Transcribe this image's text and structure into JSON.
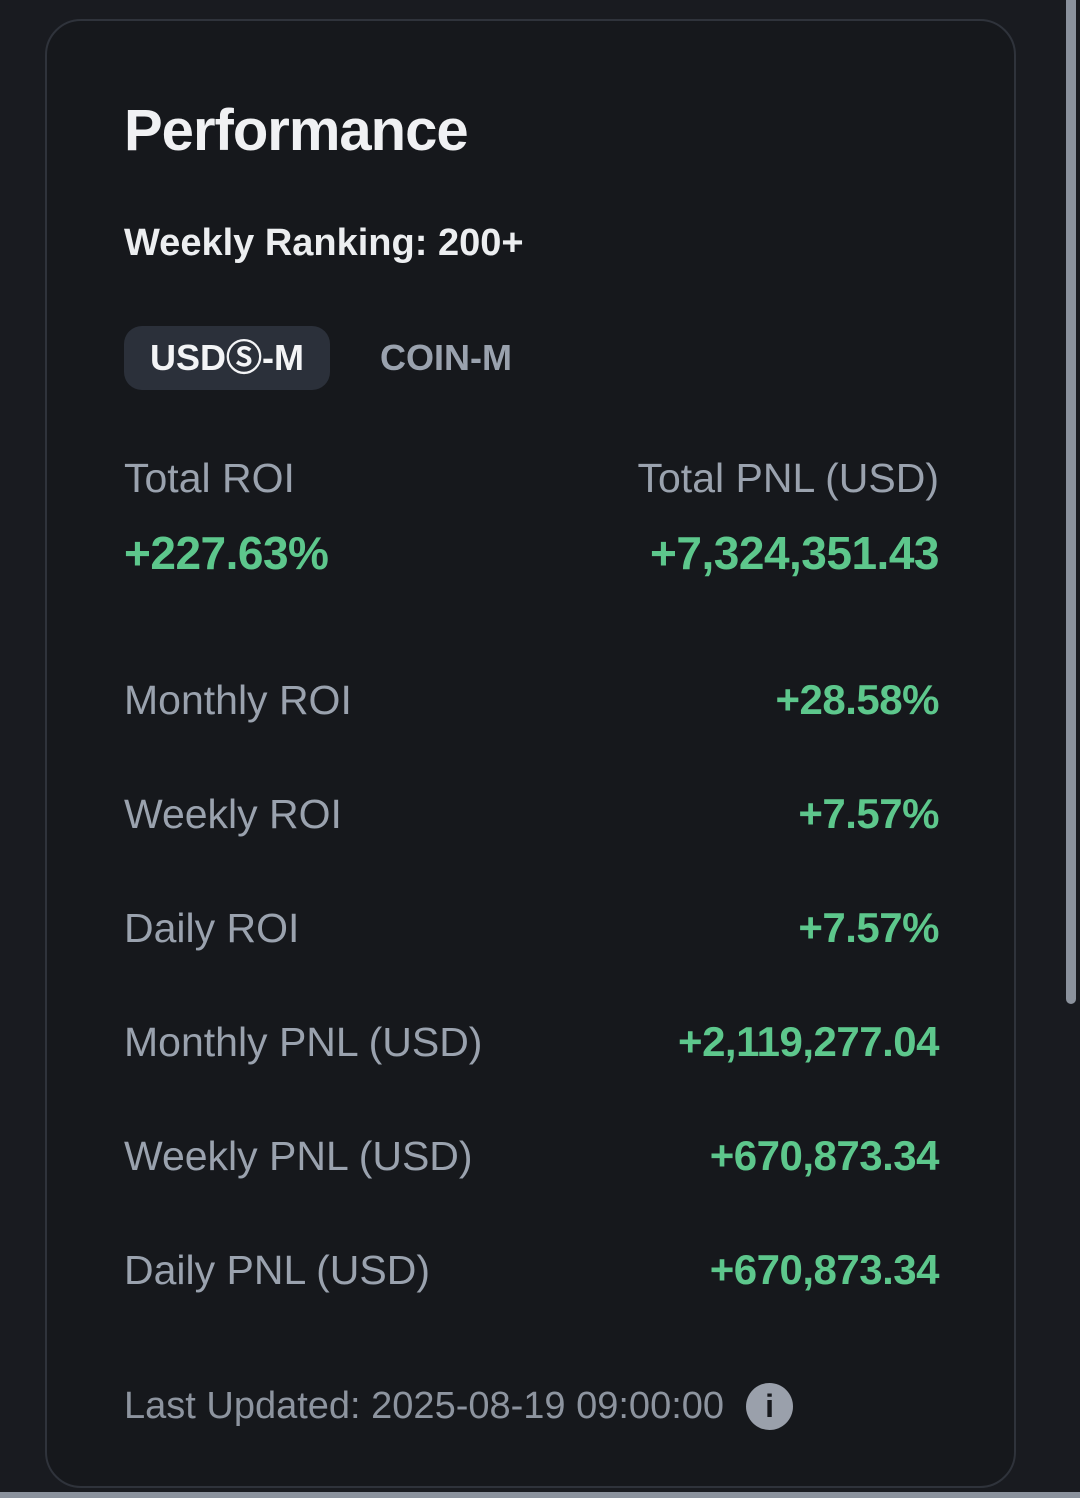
{
  "header": {
    "title": "Performance",
    "weekly_ranking": "Weekly Ranking: 200+"
  },
  "tabs": [
    {
      "label": "USDⓈ-M",
      "active": true
    },
    {
      "label": "COIN-M",
      "active": false
    }
  ],
  "headline": [
    {
      "label": "Total ROI",
      "value": "+227.63%"
    },
    {
      "label": "Total PNL (USD)",
      "value": "+7,324,351.43"
    }
  ],
  "rows": [
    {
      "label": "Monthly ROI",
      "value": "+28.58%"
    },
    {
      "label": "Weekly ROI",
      "value": "+7.57%"
    },
    {
      "label": "Daily ROI",
      "value": "+7.57%"
    },
    {
      "label": "Monthly PNL (USD)",
      "value": "+2,119,277.04"
    },
    {
      "label": "Weekly PNL (USD)",
      "value": "+670,873.34"
    },
    {
      "label": "Daily PNL (USD)",
      "value": "+670,873.34"
    }
  ],
  "footer": {
    "last_updated": "Last Updated: 2025-08-19 09:00:00"
  },
  "icons": {
    "info": "i"
  },
  "colors": {
    "page-bg": "#191b20",
    "card-bg": "#16181c",
    "card-border": "#2f333b",
    "title": "#f0f1f3",
    "ranking": "#eceef0",
    "label": "#9aa2ae",
    "positive": "#5dc78c",
    "tab-active-bg": "#2b303a",
    "tab-active-text": "#f3f4f6",
    "tab-inactive": "#9aa2ae",
    "footer-text": "#8d949f",
    "info-bg": "#9aa0ab",
    "info-glyph": "#16181c",
    "scrollbar": "#8b929d"
  }
}
